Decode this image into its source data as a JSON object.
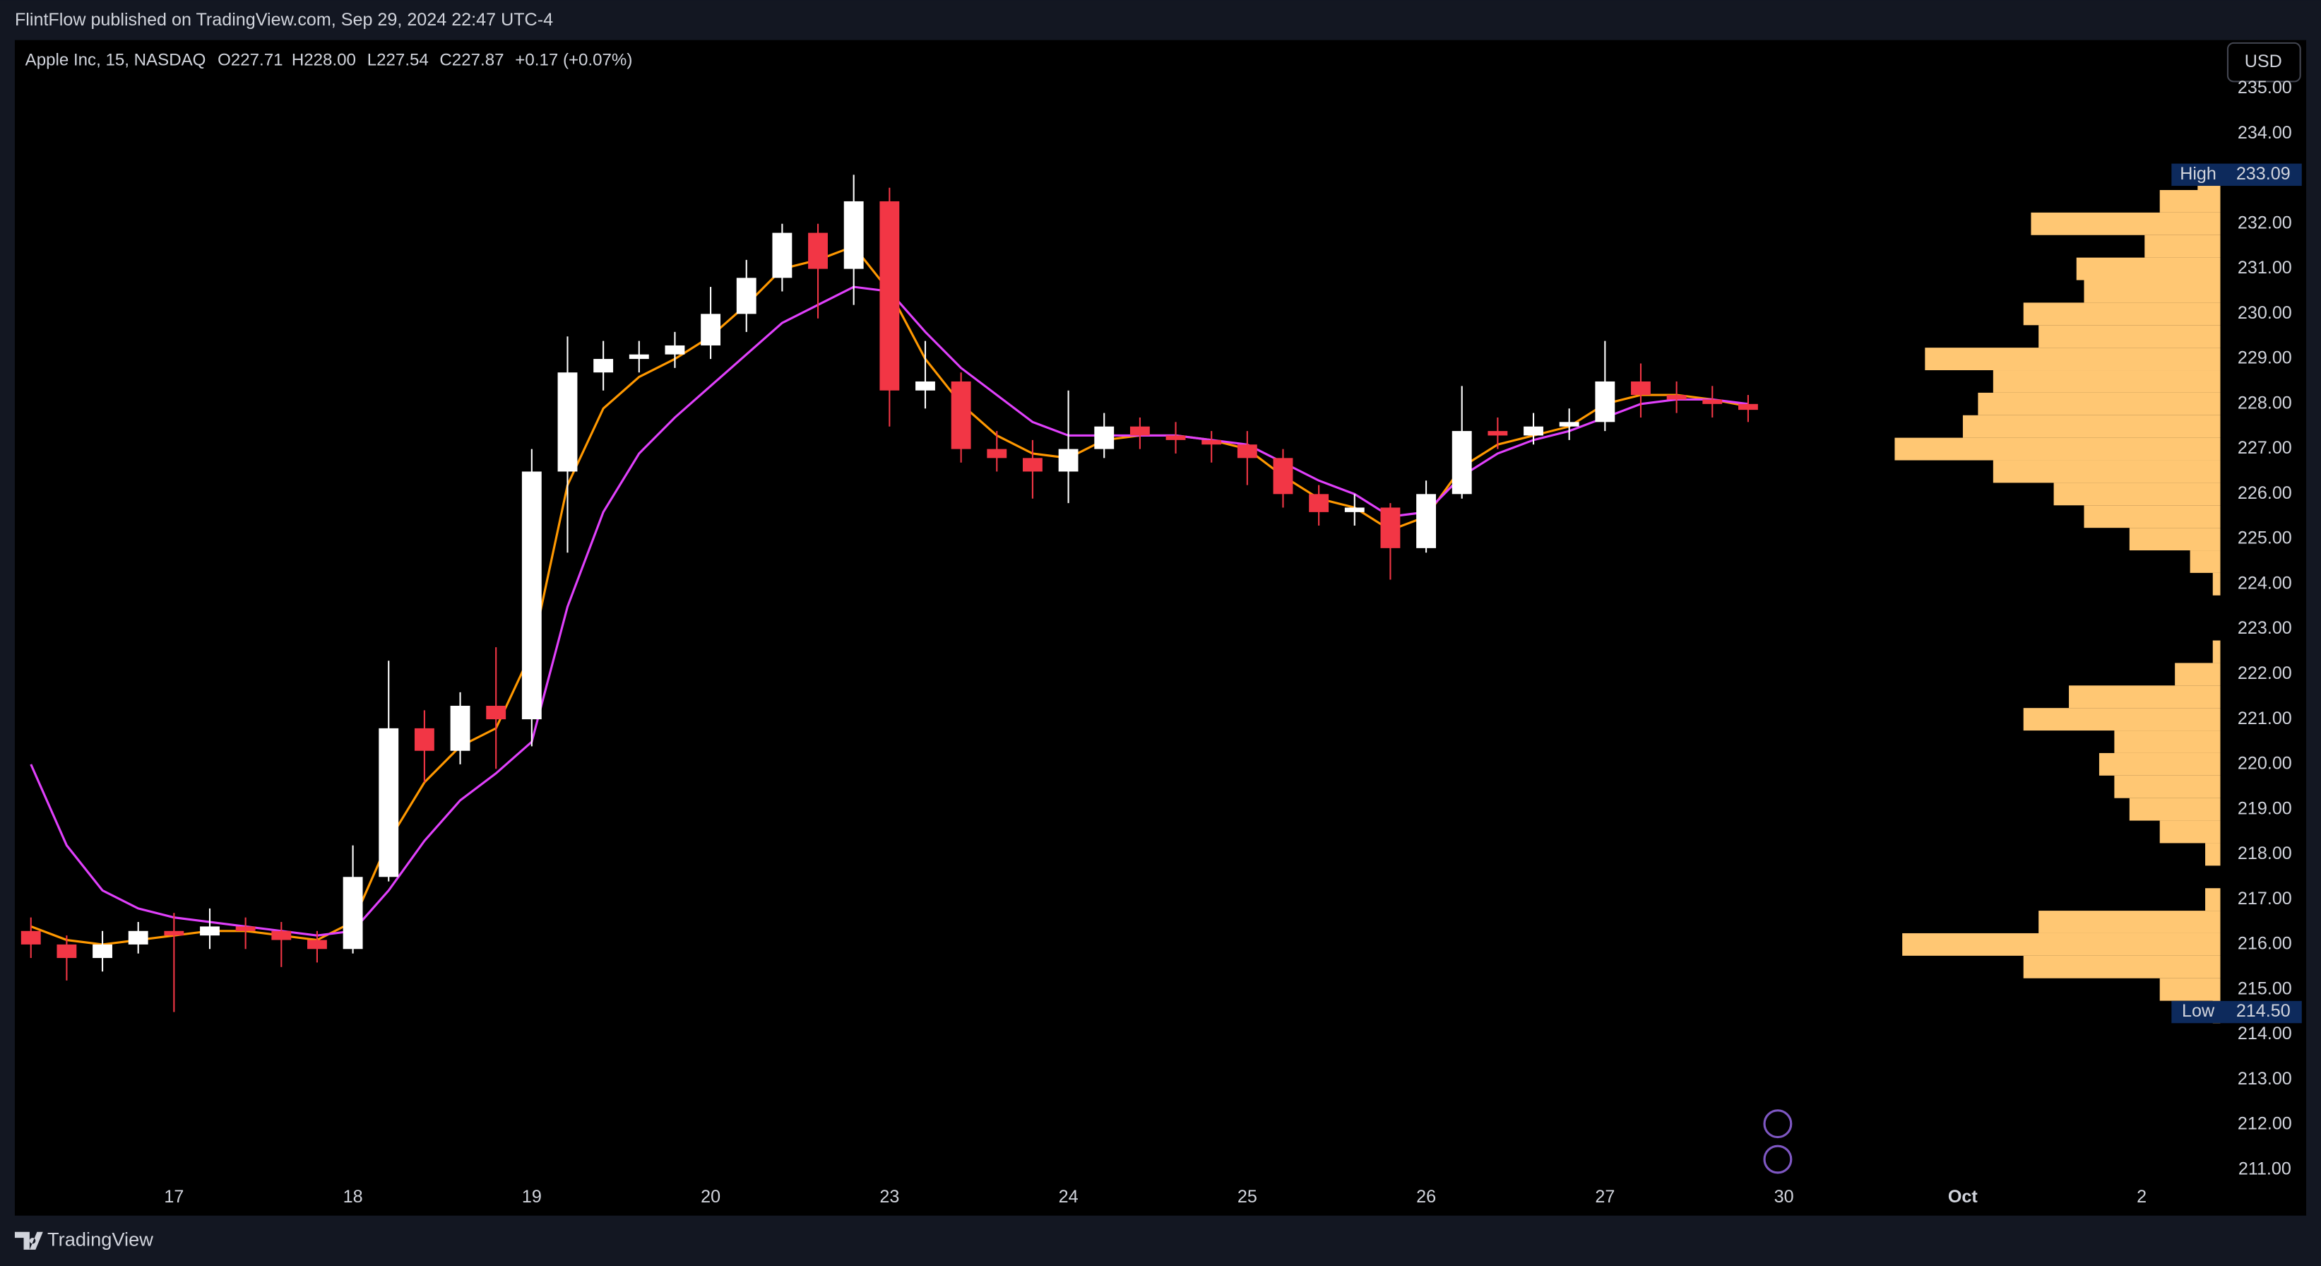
{
  "header": {
    "publisher": "FlintFlow published on TradingView.com, Sep 29, 2024 22:47 UTC-4",
    "symbol": "Apple Inc, 15, NASDAQ",
    "open": "O227.71",
    "high": "H228.00",
    "low": "L227.54",
    "close": "C227.87",
    "change": "+0.17 (+0.07%)",
    "currency": "USD",
    "footer": "TradingView"
  },
  "chart_data": {
    "type": "candlestick",
    "up_color": "#ffffff",
    "down_color": "#f23645",
    "x": [
      0.2,
      0.4,
      0.6,
      0.8,
      1.0,
      1.2,
      1.4,
      1.6,
      1.8,
      2.0,
      2.2,
      2.4,
      2.6,
      2.8,
      3.0,
      3.2,
      3.4,
      3.6,
      3.8,
      4.0,
      4.2,
      4.4,
      4.6,
      4.8,
      5.0,
      5.2,
      5.4,
      5.6,
      5.8,
      6.0,
      6.2,
      6.4,
      6.6,
      6.8,
      7.0,
      7.2,
      7.4,
      7.6,
      7.8,
      8.0,
      8.2,
      8.4,
      8.6,
      8.8,
      9.0,
      9.2,
      9.4,
      9.6,
      9.8
    ],
    "open": [
      216.3,
      216.0,
      215.7,
      216.0,
      216.3,
      216.2,
      216.4,
      216.3,
      216.1,
      215.9,
      217.5,
      220.8,
      220.3,
      221.3,
      221.0,
      226.5,
      228.7,
      229.0,
      229.1,
      229.3,
      230.0,
      230.8,
      231.8,
      231.0,
      232.5,
      228.3,
      228.5,
      227.0,
      226.8,
      226.5,
      227.0,
      227.5,
      227.3,
      227.2,
      227.1,
      226.8,
      226.0,
      225.6,
      225.7,
      224.8,
      226.0,
      227.4,
      227.3,
      227.5,
      227.6,
      228.5,
      228.2,
      228.1,
      228.0
    ],
    "high": [
      216.6,
      216.2,
      216.3,
      216.5,
      216.7,
      216.8,
      216.6,
      216.5,
      216.3,
      218.2,
      222.3,
      221.2,
      221.6,
      222.6,
      227.0,
      229.5,
      229.4,
      229.4,
      229.6,
      230.6,
      231.2,
      232.0,
      232.0,
      233.09,
      232.8,
      229.4,
      228.7,
      227.4,
      227.2,
      228.3,
      227.8,
      227.7,
      227.6,
      227.4,
      227.4,
      227.0,
      226.2,
      226.0,
      225.8,
      226.3,
      228.4,
      227.7,
      227.8,
      227.9,
      229.4,
      228.9,
      228.5,
      228.4,
      228.2
    ],
    "low": [
      215.7,
      215.2,
      215.4,
      215.8,
      214.5,
      215.9,
      215.9,
      215.5,
      215.6,
      215.8,
      217.4,
      219.6,
      220.0,
      219.9,
      220.4,
      224.7,
      228.3,
      228.7,
      228.8,
      229.0,
      229.6,
      230.5,
      229.9,
      230.2,
      227.5,
      227.9,
      226.7,
      226.5,
      225.9,
      225.8,
      226.8,
      227.0,
      226.9,
      226.7,
      226.2,
      225.7,
      225.3,
      225.3,
      224.1,
      224.7,
      225.9,
      227.0,
      227.1,
      227.2,
      227.4,
      227.7,
      227.8,
      227.7,
      227.6
    ],
    "close": [
      216.0,
      215.7,
      216.0,
      216.3,
      216.2,
      216.4,
      216.3,
      216.1,
      215.9,
      217.5,
      220.8,
      220.3,
      221.3,
      221.0,
      226.5,
      228.7,
      229.0,
      229.1,
      229.3,
      230.0,
      230.8,
      231.8,
      231.0,
      232.5,
      228.3,
      228.5,
      227.0,
      226.8,
      226.5,
      227.0,
      227.5,
      227.3,
      227.2,
      227.1,
      226.8,
      226.0,
      225.6,
      225.7,
      224.8,
      226.0,
      227.4,
      227.3,
      227.5,
      227.6,
      228.5,
      228.2,
      228.1,
      228.0,
      227.87
    ],
    "lines": [
      {
        "color": "#ff9800",
        "values": [
          216.4,
          216.1,
          216.0,
          216.1,
          216.2,
          216.3,
          216.3,
          216.2,
          216.1,
          216.5,
          218.3,
          219.6,
          220.4,
          220.8,
          222.5,
          226.2,
          227.9,
          228.6,
          229.0,
          229.5,
          230.2,
          231.0,
          231.2,
          231.5,
          230.5,
          229.0,
          228.0,
          227.3,
          226.9,
          226.8,
          227.2,
          227.3,
          227.3,
          227.2,
          227.0,
          226.4,
          225.9,
          225.7,
          225.2,
          225.5,
          226.6,
          227.1,
          227.3,
          227.5,
          228.0,
          228.2,
          228.2,
          228.1,
          227.95
        ]
      },
      {
        "color": "#e040fb",
        "values": [
          220.0,
          218.2,
          217.2,
          216.8,
          216.6,
          216.5,
          216.4,
          216.3,
          216.2,
          216.3,
          217.2,
          218.3,
          219.2,
          219.8,
          220.5,
          223.5,
          225.6,
          226.9,
          227.7,
          228.4,
          229.1,
          229.8,
          230.2,
          230.6,
          230.5,
          229.6,
          228.8,
          228.2,
          227.6,
          227.3,
          227.3,
          227.3,
          227.3,
          227.2,
          227.1,
          226.7,
          226.3,
          226.0,
          225.5,
          225.6,
          226.4,
          226.9,
          227.2,
          227.4,
          227.7,
          228.0,
          228.1,
          228.1,
          228.0
        ]
      }
    ],
    "volume_profile": {
      "color": "#ffc773",
      "prices": [
        214.5,
        215,
        215.5,
        216,
        216.5,
        217,
        217.5,
        218,
        218.5,
        219,
        219.5,
        220,
        220.5,
        221,
        221.5,
        222,
        222.5,
        223,
        223.5,
        224,
        224.5,
        225,
        225.5,
        226,
        226.5,
        227,
        227.5,
        228,
        228.5,
        229,
        229.5,
        230,
        230.5,
        231,
        231.5,
        232,
        232.5,
        233
      ],
      "volumes": [
        5,
        40,
        130,
        210,
        120,
        10,
        null,
        10,
        40,
        60,
        70,
        80,
        70,
        130,
        100,
        30,
        5,
        null,
        null,
        5,
        20,
        60,
        90,
        110,
        150,
        215,
        170,
        160,
        150,
        195,
        120,
        130,
        90,
        95,
        50,
        125,
        40,
        15
      ]
    },
    "ylim": [
      210.77,
      236.08
    ],
    "yticks": [
      {
        "value": 211,
        "label": "211.00"
      },
      {
        "value": 212,
        "label": "212.00"
      },
      {
        "value": 213,
        "label": "213.00"
      },
      {
        "value": 214,
        "label": "214.00"
      },
      {
        "value": 215,
        "label": "215.00"
      },
      {
        "value": 216,
        "label": "216.00"
      },
      {
        "value": 217,
        "label": "217.00"
      },
      {
        "value": 218,
        "label": "218.00"
      },
      {
        "value": 219,
        "label": "219.00"
      },
      {
        "value": 220,
        "label": "220.00"
      },
      {
        "value": 221,
        "label": "221.00"
      },
      {
        "value": 222,
        "label": "222.00"
      },
      {
        "value": 223,
        "label": "223.00"
      },
      {
        "value": 224,
        "label": "224.00"
      },
      {
        "value": 225,
        "label": "225.00"
      },
      {
        "value": 226,
        "label": "226.00"
      },
      {
        "value": 227,
        "label": "227.00"
      },
      {
        "value": 228,
        "label": "228.00"
      },
      {
        "value": 229,
        "label": "229.00"
      },
      {
        "value": 230,
        "label": "230.00"
      },
      {
        "value": 231,
        "label": "231.00"
      },
      {
        "value": 232,
        "label": "232.00"
      },
      {
        "value": 234,
        "label": "234.00"
      },
      {
        "value": 235,
        "label": "235.00"
      }
    ],
    "xlim": [
      0.11,
      12.44
    ],
    "xticks": [
      {
        "value": 1,
        "label": "17"
      },
      {
        "value": 2,
        "label": "18"
      },
      {
        "value": 3,
        "label": "19"
      },
      {
        "value": 4,
        "label": "20"
      },
      {
        "value": 5,
        "label": "23"
      },
      {
        "value": 6,
        "label": "24"
      },
      {
        "value": 7,
        "label": "25"
      },
      {
        "value": 8,
        "label": "26"
      },
      {
        "value": 9,
        "label": "27"
      },
      {
        "value": 10,
        "label": "30"
      },
      {
        "value": 11,
        "label": "Oct"
      },
      {
        "value": 12,
        "label": "2"
      }
    ],
    "high_marker": {
      "label": "High",
      "value": 233.09
    },
    "low_marker": {
      "label": "Low",
      "value": {
        "value": 214.5,
        "label": "214.50"
      }
    }
  }
}
